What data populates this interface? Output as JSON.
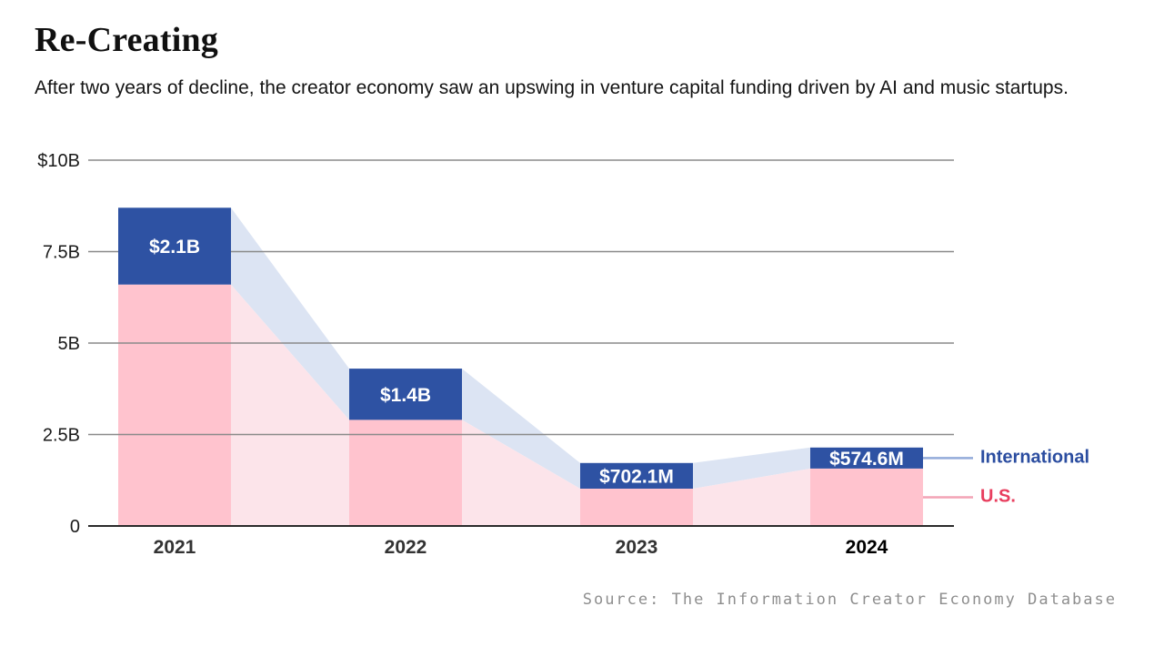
{
  "header": {
    "title": "Re-Creating",
    "subtitle": "After two years of decline, the creator economy saw an upswing in venture capital funding driven by AI and music startups."
  },
  "source": "Source: The Information Creator Economy Database",
  "colors": {
    "grid_line": "#8a8a8a",
    "axis_line": "#2b2b2b",
    "tick_text": "#1a1a1a",
    "x_label_text": "#333333",
    "x_label_emphasized_text": "#000000",
    "bar_label_text": "#ffffff",
    "intl_leader_line": "#93abda",
    "us_leader_line": "#f3a4b5"
  },
  "chart_data": {
    "type": "bar",
    "subtype": "stacked-bars-with-connecting-areas",
    "unit": "billions USD",
    "title": "Re-Creating",
    "categories": [
      {
        "label": "2021",
        "emphasized": false
      },
      {
        "label": "2022",
        "emphasized": false
      },
      {
        "label": "2023",
        "emphasized": false
      },
      {
        "label": "2024",
        "emphasized": true
      }
    ],
    "series": [
      {
        "name": "U.S.",
        "values_billions": [
          6.6,
          2.9,
          1.02,
          1.57
        ],
        "bar_color": "#ffc3ce",
        "area_color": "#fce4ea",
        "label_color": "#e83e5e"
      },
      {
        "name": "International",
        "values_billions": [
          2.1,
          1.4,
          0.7021,
          0.5746
        ],
        "bar_color": "#2e52a3",
        "area_color": "#dce4f3",
        "label_color": "#2b4da0"
      }
    ],
    "segment_labels": [
      "$2.1B",
      "$1.4B",
      "$702.1M",
      "$574.6M"
    ],
    "yticks": [
      {
        "value": 0,
        "label": "0"
      },
      {
        "value": 2.5,
        "label": "2.5B"
      },
      {
        "value": 5,
        "label": "5B"
      },
      {
        "value": 7.5,
        "label": "7.5B"
      },
      {
        "value": 10,
        "label": "$10B"
      }
    ],
    "ylim": [
      0,
      10
    ],
    "grid": true,
    "legend_position": "right-of-last-bar",
    "legend": [
      {
        "label": "International",
        "color": "#2b4da0"
      },
      {
        "label": "U.S.",
        "color": "#e83e5e"
      }
    ]
  }
}
